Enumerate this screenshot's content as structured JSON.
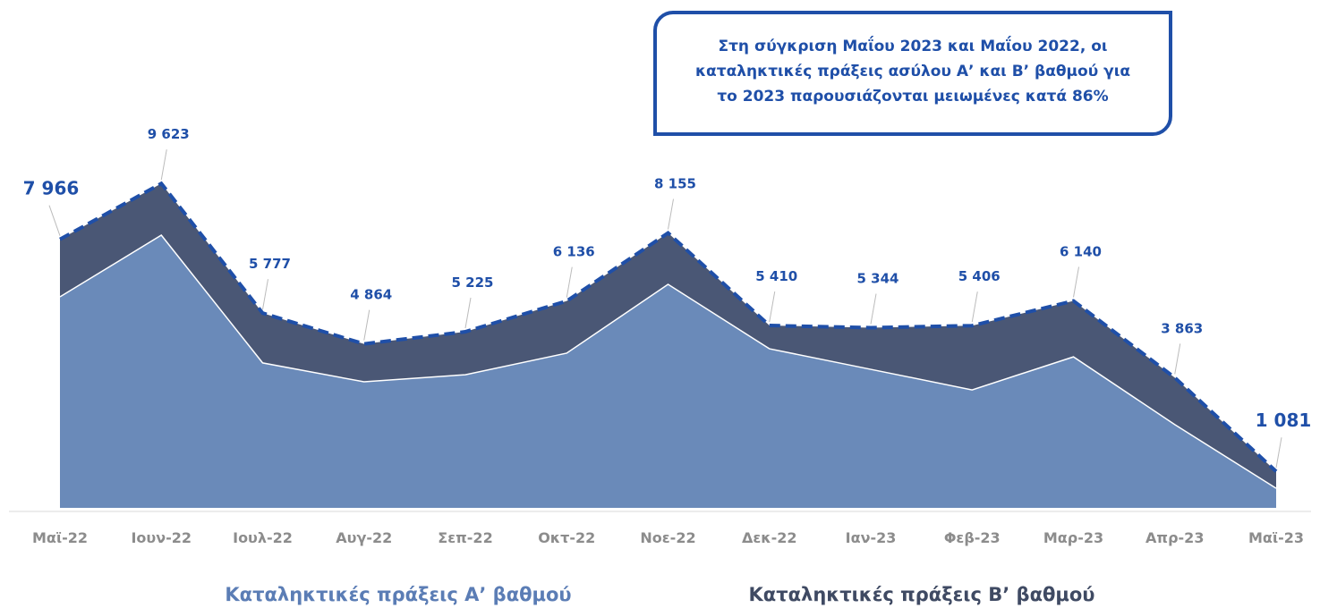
{
  "chart_data": {
    "type": "stacked_area",
    "annotation": "Στη σύγκριση Μαΐου 2023 και Μαΐου 2022, οι καταληκτικές πράξεις ασύλου Α’ και Β’ βαθμού για το 2023 παρουσιάζονται μειωμένες κατά 86%",
    "categories": [
      "Μαϊ-22",
      "Ιουν-22",
      "Ιουλ-22",
      "Αυγ-22",
      "Σεπ-22",
      "Οκτ-22",
      "Νοε-22",
      "Δεκ-22",
      "Ιαν-23",
      "Φεβ-23",
      "Μαρ-23",
      "Απρ-23",
      "Μαϊ-23"
    ],
    "series": [
      {
        "name": "Καταληκτικές πράξεις Α’ βαθμού",
        "color": "#6a8ab9",
        "values": [
          6260,
          8090,
          4300,
          3740,
          3950,
          4590,
          6630,
          4720,
          4110,
          3500,
          4480,
          2470,
          580
        ]
      },
      {
        "name": "Καταληκτικές πράξεις Β’ βαθμού",
        "color": "#4a5775",
        "values": [
          1706,
          1533,
          1477,
          1124,
          1275,
          1546,
          1525,
          690,
          1234,
          1906,
          1660,
          1393,
          501
        ]
      }
    ],
    "totals": {
      "values": [
        7966,
        9623,
        5777,
        4864,
        5225,
        6136,
        8155,
        5410,
        5344,
        5406,
        6140,
        3863,
        1081
      ],
      "value_labels": [
        "7 966",
        "9 623",
        "5 777",
        "4 864",
        "5 225",
        "6 136",
        "8 155",
        "5 410",
        "5 344",
        "5 406",
        "6 140",
        "3 863",
        "1 081"
      ],
      "color": "#1f4fa8"
    },
    "ylim": [
      0,
      10000
    ]
  }
}
